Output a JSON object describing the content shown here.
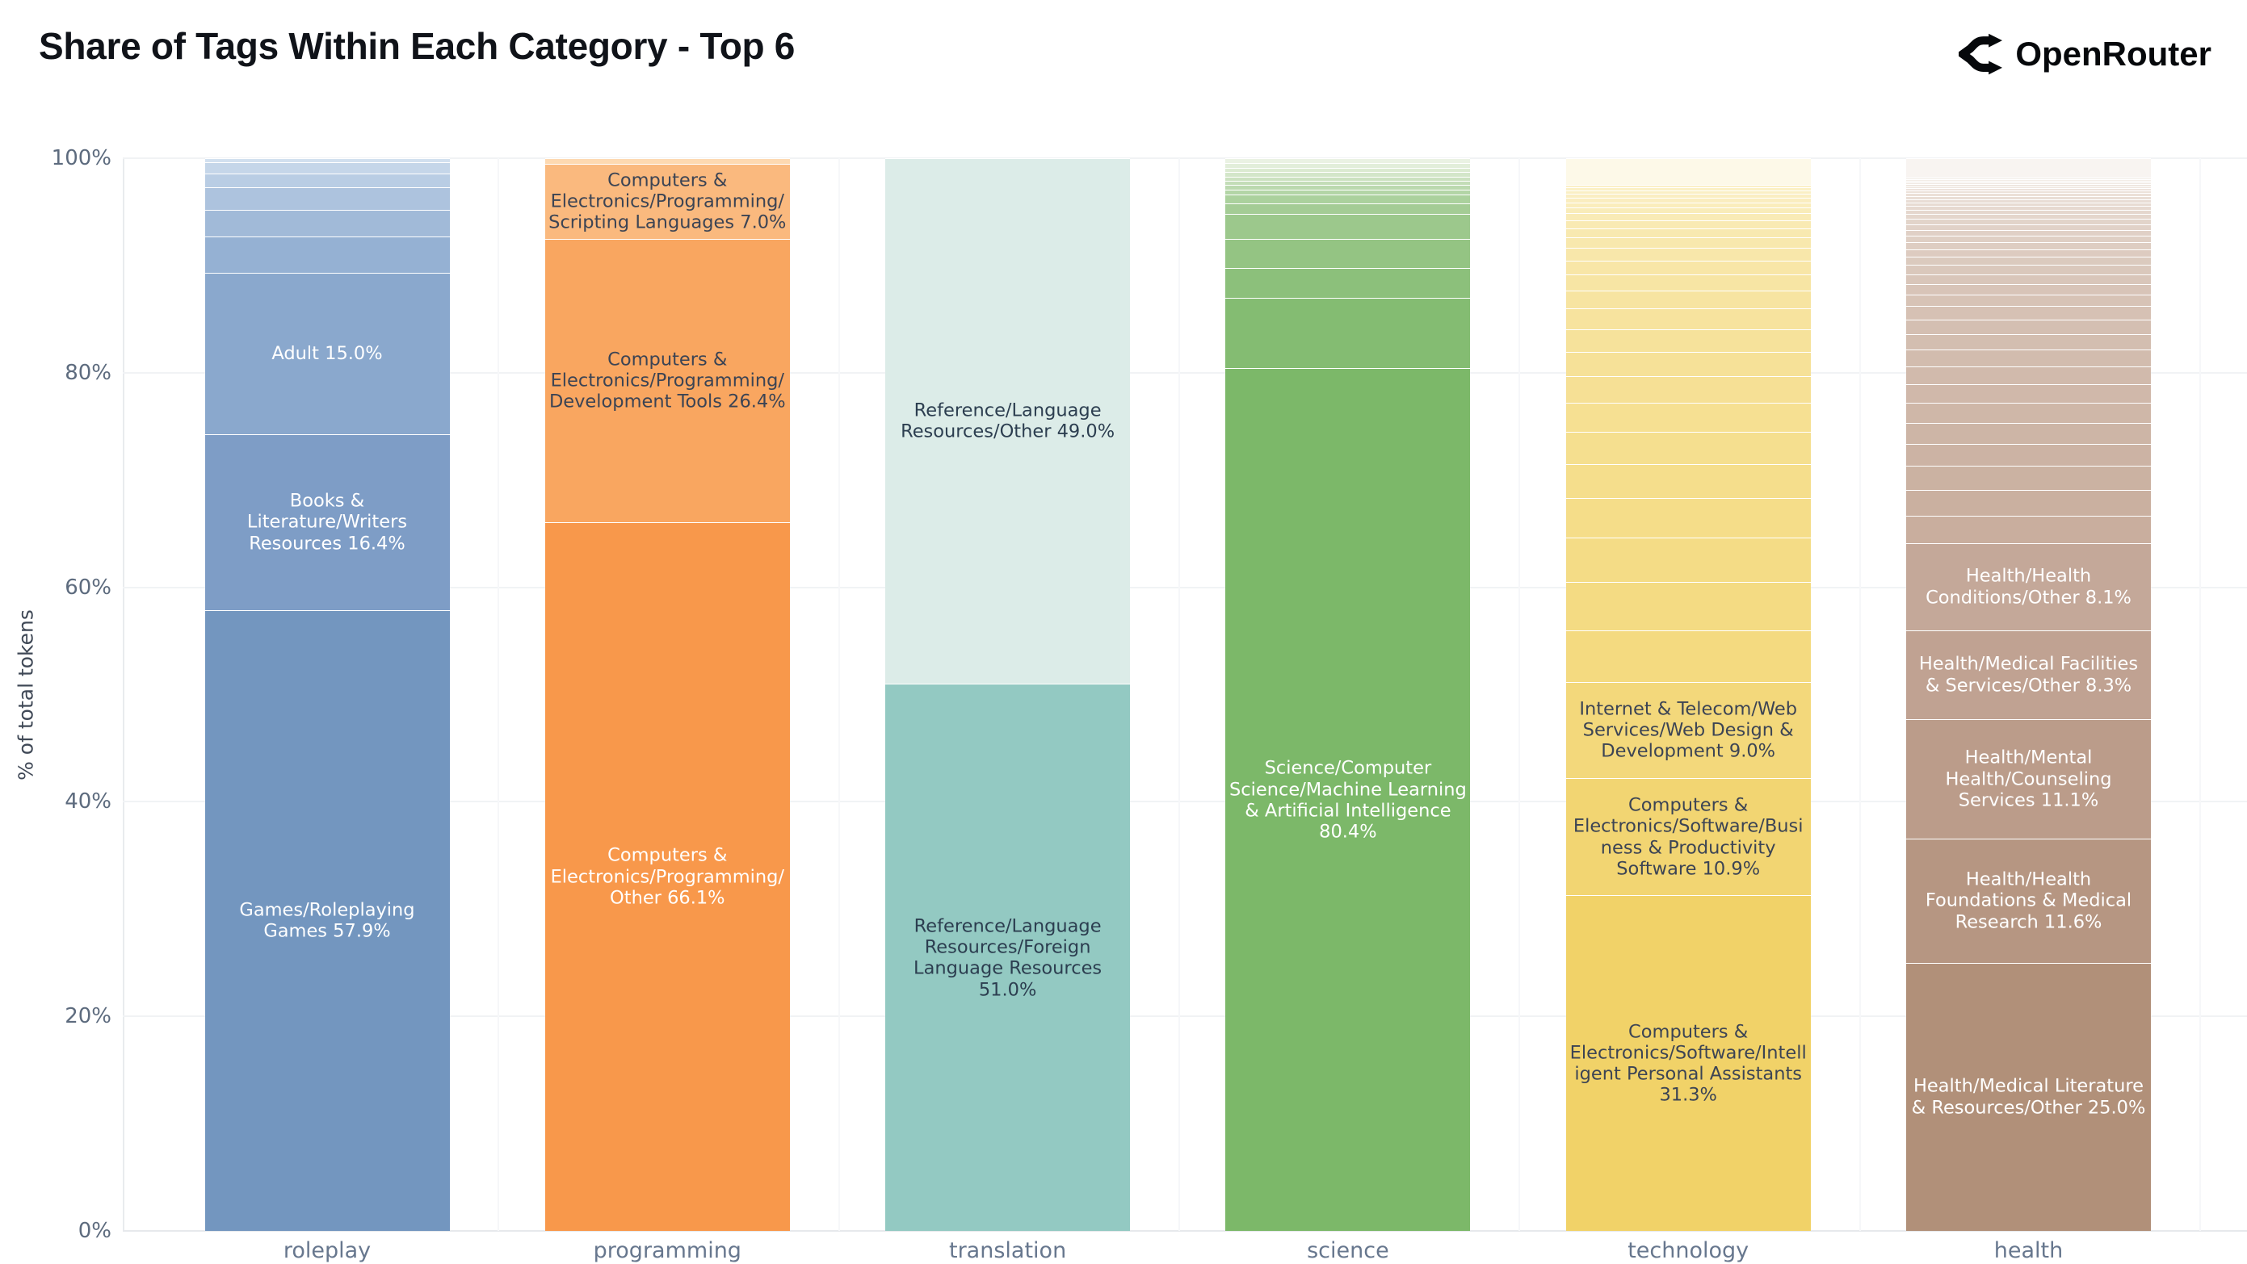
{
  "header": {
    "title": "Share of Tags Within Each Category - Top 6",
    "brand": "OpenRouter"
  },
  "chart_data": {
    "type": "bar",
    "variant": "stacked-percent",
    "title": "Share of Tags Within Each Category - Top 6",
    "xlabel": "",
    "ylabel": "% of total tokens",
    "ylim": [
      0,
      100
    ],
    "grid": "horizontal",
    "legend": "none",
    "separator_color": "#ffffff",
    "yticks": [
      {
        "label": "0%",
        "value": 0
      },
      {
        "label": "20%",
        "value": 20
      },
      {
        "label": "40%",
        "value": 40
      },
      {
        "label": "60%",
        "value": 60
      },
      {
        "label": "80%",
        "value": 80
      },
      {
        "label": "100%",
        "value": 100
      }
    ],
    "categories": [
      "roleplay",
      "programming",
      "translation",
      "science",
      "technology",
      "health"
    ],
    "bars": [
      {
        "category": "roleplay",
        "base_color": "#7396bf",
        "segments": [
          {
            "label": "Games/Roleplaying Games 57.9%",
            "value": 57.9,
            "color": "#7396bf",
            "text_color": "#ffffff"
          },
          {
            "label": "Books & Literature/Writers Resources 16.4%",
            "value": 16.4,
            "color": "#7e9dc6",
            "text_color": "#ffffff"
          },
          {
            "label": "Adult 15.0%",
            "value": 15.0,
            "color": "#8aa8cd",
            "text_color": "#ffffff"
          },
          {
            "label": "",
            "value": 3.4,
            "color": "#95b1d3"
          },
          {
            "label": "",
            "value": 2.5,
            "color": "#a1bad8"
          },
          {
            "label": "",
            "value": 2.1,
            "color": "#adc3de"
          },
          {
            "label": "",
            "value": 1.3,
            "color": "#b9cde4"
          },
          {
            "label": "",
            "value": 1.0,
            "color": "#c5d6e9"
          },
          {
            "label": "",
            "value": 0.4,
            "color": "#d2e0ef"
          }
        ]
      },
      {
        "category": "programming",
        "base_color": "#f8984b",
        "segments": [
          {
            "label": "Computers & Electronics/Programming/Other 66.1%",
            "value": 66.1,
            "color": "#f8984b",
            "text_color": "#ffffff"
          },
          {
            "label": "Computers & Electronics/Programming/Development Tools 26.4%",
            "value": 26.4,
            "color": "#f9a660",
            "text_color": "#3c4454"
          },
          {
            "label": "Computers & Electronics/Programming/Scripting Languages 7.0%",
            "value": 7.0,
            "color": "#fab97e",
            "text_color": "#3c4454"
          },
          {
            "label": "",
            "value": 0.5,
            "color": "#fdd9b1"
          }
        ]
      },
      {
        "category": "translation",
        "base_color": "#93c9c2",
        "segments": [
          {
            "label": "Reference/Language Resources/Foreign Language Resources 51.0%",
            "value": 51.0,
            "color": "#93c9c2",
            "text_color": "#2c3e50"
          },
          {
            "label": "Reference/Language Resources/Other 49.0%",
            "value": 49.0,
            "color": "#dcece8",
            "text_color": "#2c3e50"
          }
        ]
      },
      {
        "category": "science",
        "base_color": "#7cb869",
        "segments": [
          {
            "label": "Science/Computer Science/Machine Learning & Artificial Intelligence 80.4%",
            "value": 80.4,
            "color": "#7cb869",
            "text_color": "#ffffff"
          },
          {
            "label": "",
            "value": 6.6,
            "color": "#84bc72"
          },
          {
            "label": "",
            "value": 2.8,
            "color": "#8cc07b"
          },
          {
            "label": "",
            "value": 2.7,
            "color": "#94c483"
          },
          {
            "label": "",
            "value": 2.3,
            "color": "#9cc88c"
          },
          {
            "label": "",
            "value": 1.0,
            "color": "#a4cc95"
          },
          {
            "label": "",
            "value": 0.8,
            "color": "#abd19d"
          },
          {
            "label": "",
            "value": 0.45,
            "color": "#b3d5a6"
          },
          {
            "label": "",
            "value": 0.45,
            "color": "#bbd9af"
          },
          {
            "label": "",
            "value": 0.4,
            "color": "#c3ddb7"
          },
          {
            "label": "",
            "value": 0.4,
            "color": "#cbe1c0"
          },
          {
            "label": "",
            "value": 0.4,
            "color": "#d3e6c9"
          },
          {
            "label": "",
            "value": 0.4,
            "color": "#dbead1"
          },
          {
            "label": "",
            "value": 0.45,
            "color": "#e2eeda"
          },
          {
            "label": "",
            "value": 0.45,
            "color": "#eaf2e3"
          }
        ]
      },
      {
        "category": "technology",
        "base_color": "#f1d268",
        "segments": [
          {
            "label": "Computers & Electronics/Software/Intelligent Personal Assistants 31.3%",
            "value": 31.3,
            "color": "#f1d268",
            "text_color": "#3c4454"
          },
          {
            "label": "Computers & Electronics/Software/Business & Productivity Software 10.9%",
            "value": 10.9,
            "color": "#f2d572",
            "text_color": "#3c4454"
          },
          {
            "label": "Internet & Telecom/Web Services/Web Design & Development 9.0%",
            "value": 9.0,
            "color": "#f3d87b",
            "text_color": "#3c4454"
          },
          {
            "label": "",
            "value": 4.8,
            "color": "#f4da80"
          },
          {
            "label": "",
            "value": 4.5,
            "color": "#f4db83"
          },
          {
            "label": "",
            "value": 4.1,
            "color": "#f4dc86"
          },
          {
            "label": "",
            "value": 3.72,
            "color": "#f5dd89"
          },
          {
            "label": "",
            "value": 3.2,
            "color": "#f5de8c"
          },
          {
            "label": "",
            "value": 2.95,
            "color": "#f5df8f"
          },
          {
            "label": "",
            "value": 2.7,
            "color": "#f6e092"
          },
          {
            "label": "",
            "value": 2.5,
            "color": "#f6e095"
          },
          {
            "label": "",
            "value": 2.3,
            "color": "#f6e198"
          },
          {
            "label": "",
            "value": 2.1,
            "color": "#f6e29b"
          },
          {
            "label": "",
            "value": 1.9,
            "color": "#f7e39e"
          },
          {
            "label": "",
            "value": 1.7,
            "color": "#f7e4a1"
          },
          {
            "label": "",
            "value": 1.5,
            "color": "#f7e5a4"
          },
          {
            "label": "",
            "value": 1.3,
            "color": "#f8e6a7"
          },
          {
            "label": "",
            "value": 1.15,
            "color": "#f8e7aa"
          },
          {
            "label": "",
            "value": 1.0,
            "color": "#f8e8ad"
          },
          {
            "label": "",
            "value": 0.85,
            "color": "#f8e9b0"
          },
          {
            "label": "",
            "value": 0.75,
            "color": "#f9eab3"
          },
          {
            "label": "",
            "value": 0.65,
            "color": "#f9ebb6"
          },
          {
            "label": "",
            "value": 0.55,
            "color": "#f9ecb9"
          },
          {
            "label": "",
            "value": 0.48,
            "color": "#faedbc"
          },
          {
            "label": "",
            "value": 0.42,
            "color": "#faedbf"
          },
          {
            "label": "",
            "value": 0.36,
            "color": "#faeec2"
          },
          {
            "label": "",
            "value": 0.31,
            "color": "#faefc4"
          },
          {
            "label": "",
            "value": 0.27,
            "color": "#fbf0c6"
          },
          {
            "label": "",
            "value": 0.24,
            "color": "#fbf0c8"
          },
          {
            "label": "",
            "value": 2.5,
            "color": "#fdf9e8"
          }
        ]
      },
      {
        "category": "health",
        "base_color": "#b19079",
        "segments": [
          {
            "label": "Health/Medical Literature & Resources/Other 25.0%",
            "value": 25.0,
            "color": "#b19079",
            "text_color": "#ffffff"
          },
          {
            "label": "Health/Health Foundations & Medical Research 11.6%",
            "value": 11.6,
            "color": "#b69682",
            "text_color": "#ffffff"
          },
          {
            "label": "Health/Mental Health/Counseling Services 11.1%",
            "value": 11.1,
            "color": "#bb9c8a",
            "text_color": "#ffffff"
          },
          {
            "label": "Health/Medical Facilities & Services/Other 8.3%",
            "value": 8.3,
            "color": "#c0a292",
            "text_color": "#ffffff"
          },
          {
            "label": "Health/Health Conditions/Other 8.1%",
            "value": 8.1,
            "color": "#c4a899",
            "text_color": "#ffffff"
          },
          {
            "label": "",
            "value": 2.55,
            "color": "#c9ae9e"
          },
          {
            "label": "",
            "value": 2.4,
            "color": "#cab0a0"
          },
          {
            "label": "",
            "value": 2.25,
            "color": "#cbb2a2"
          },
          {
            "label": "",
            "value": 2.1,
            "color": "#ccb3a4"
          },
          {
            "label": "",
            "value": 1.95,
            "color": "#cdb5a6"
          },
          {
            "label": "",
            "value": 1.85,
            "color": "#cfb7a8"
          },
          {
            "label": "",
            "value": 1.75,
            "color": "#d0b8aa"
          },
          {
            "label": "",
            "value": 1.65,
            "color": "#d1baac"
          },
          {
            "label": "",
            "value": 1.55,
            "color": "#d2bcae"
          },
          {
            "label": "",
            "value": 1.45,
            "color": "#d3beb0"
          },
          {
            "label": "",
            "value": 1.35,
            "color": "#d4bfb2"
          },
          {
            "label": "",
            "value": 1.25,
            "color": "#d6c1b4"
          },
          {
            "label": "",
            "value": 1.05,
            "color": "#d7c3b6"
          },
          {
            "label": "",
            "value": 1.0,
            "color": "#d8c4b8"
          },
          {
            "label": "",
            "value": 0.95,
            "color": "#d9c6ba"
          },
          {
            "label": "",
            "value": 0.88,
            "color": "#dac8bc"
          },
          {
            "label": "",
            "value": 0.75,
            "color": "#dbcabe"
          },
          {
            "label": "",
            "value": 0.7,
            "color": "#ddcbc0"
          },
          {
            "label": "",
            "value": 0.65,
            "color": "#decdc2"
          },
          {
            "label": "",
            "value": 0.6,
            "color": "#dfcfc4"
          },
          {
            "label": "",
            "value": 0.56,
            "color": "#e0d0c6"
          },
          {
            "label": "",
            "value": 0.52,
            "color": "#e1d2c8"
          },
          {
            "label": "",
            "value": 0.48,
            "color": "#e2d4ca"
          },
          {
            "label": "",
            "value": 0.44,
            "color": "#e4d6cc"
          },
          {
            "label": "",
            "value": 0.4,
            "color": "#e5d7ce"
          },
          {
            "label": "",
            "value": 0.37,
            "color": "#e6d9d0"
          },
          {
            "label": "",
            "value": 0.34,
            "color": "#e7dbd2"
          },
          {
            "label": "",
            "value": 0.31,
            "color": "#e8dcd4"
          },
          {
            "label": "",
            "value": 0.28,
            "color": "#e9ded6"
          },
          {
            "label": "",
            "value": 0.26,
            "color": "#ebe0d8"
          },
          {
            "label": "",
            "value": 0.24,
            "color": "#ece2da"
          },
          {
            "label": "",
            "value": 0.22,
            "color": "#ede3dc"
          },
          {
            "label": "",
            "value": 0.2,
            "color": "#eee5de"
          },
          {
            "label": "",
            "value": 0.18,
            "color": "#efe7e0"
          },
          {
            "label": "",
            "value": 0.17,
            "color": "#f0e8e2"
          },
          {
            "label": "",
            "value": 0.16,
            "color": "#f1eae4"
          },
          {
            "label": "",
            "value": 0.15,
            "color": "#f2ece6"
          },
          {
            "label": "",
            "value": 0.14,
            "color": "#f2ede8"
          },
          {
            "label": "",
            "value": 1.8,
            "color": "#f8f4f1"
          }
        ]
      }
    ]
  }
}
